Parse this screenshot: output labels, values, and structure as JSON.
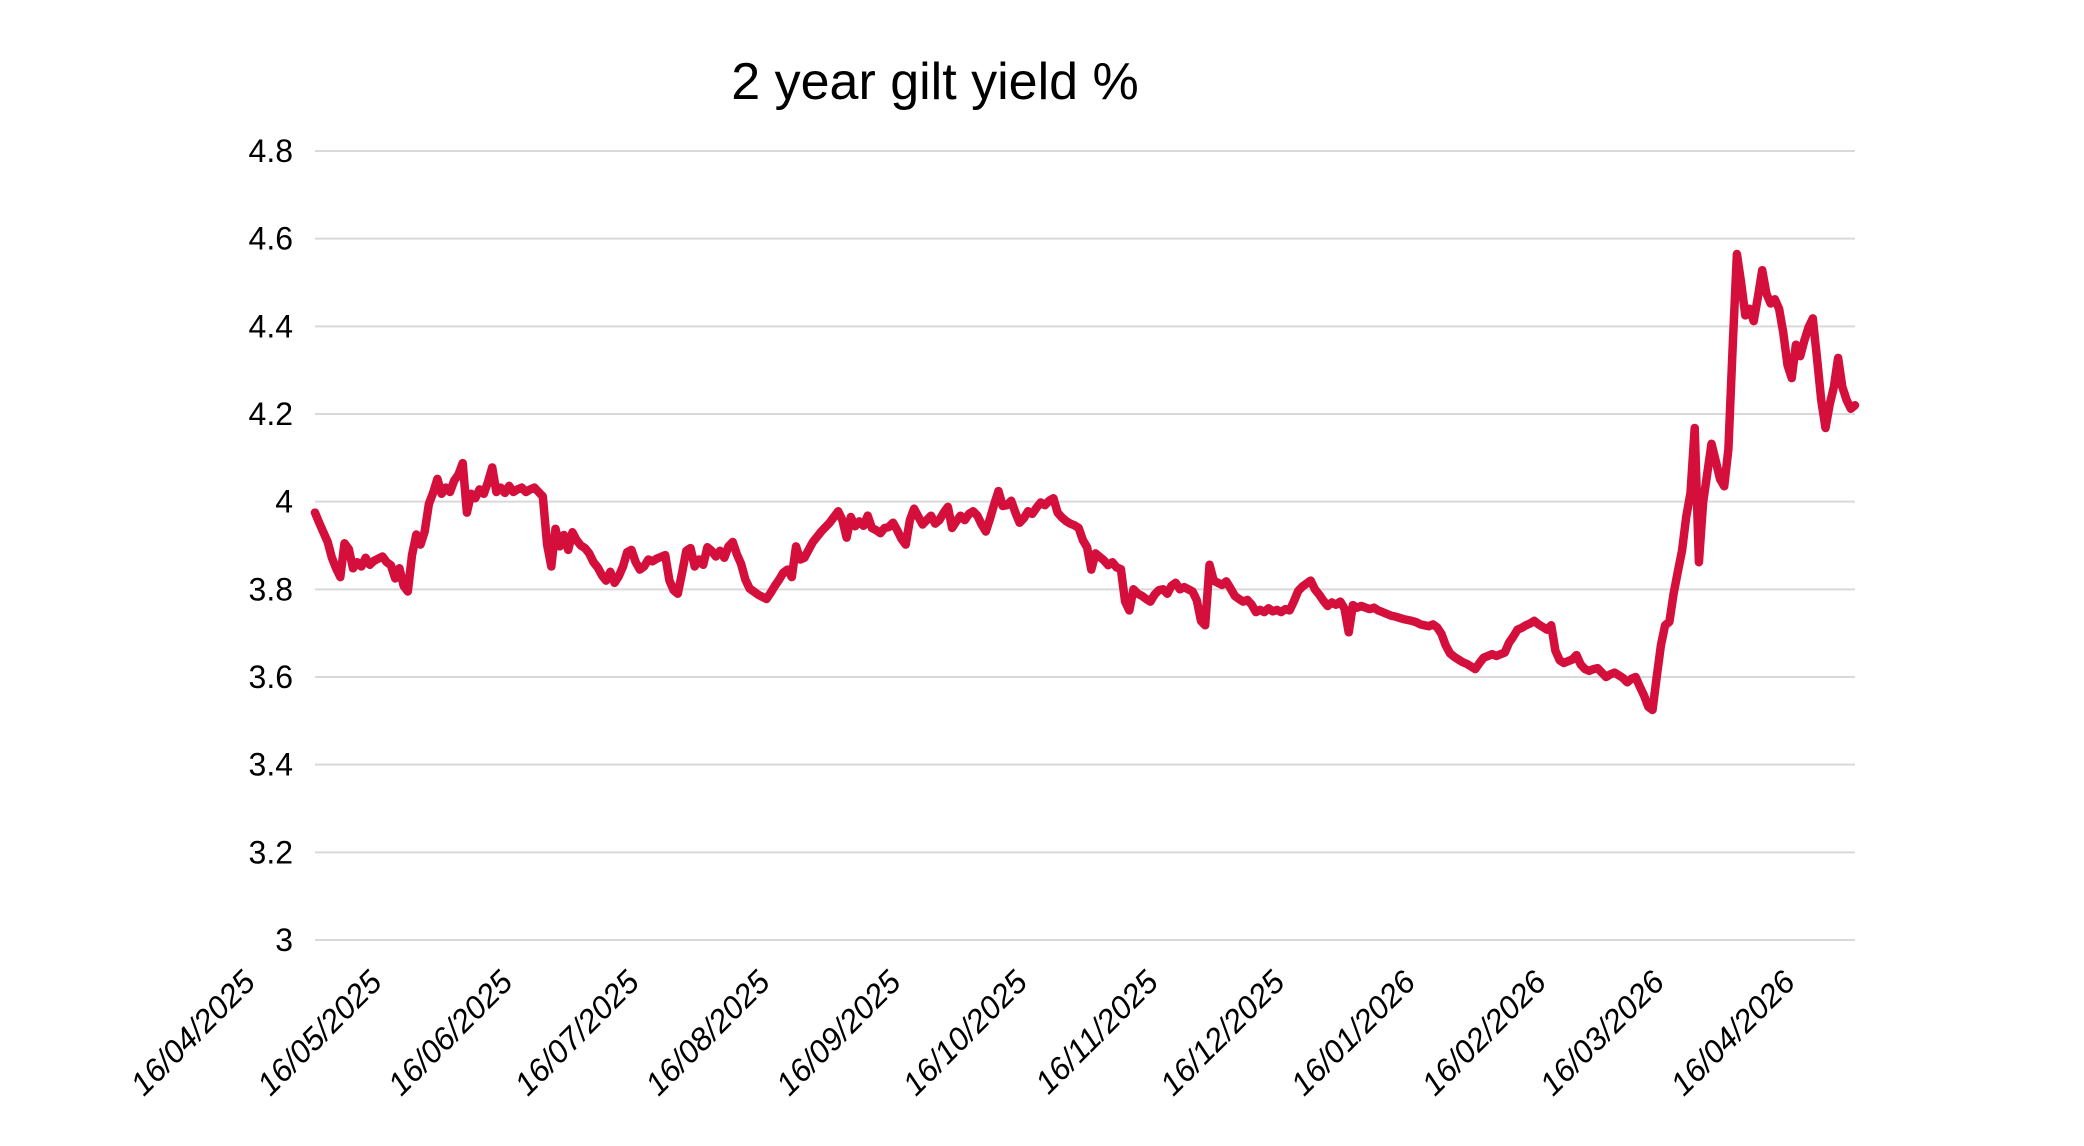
{
  "chart_data": {
    "type": "line",
    "title": "2 year gilt yield %",
    "series_name": "2 year gilt yield",
    "legend": "none",
    "grid": "horizontal",
    "background": "#ffffff",
    "line_color": "#d40f3c",
    "grid_color": "#d9d9d9",
    "text_color": "#000000",
    "y_min": 3.0,
    "y_max": 4.8,
    "y_tick_labels": [
      "3",
      "3.2",
      "3.4",
      "3.6",
      "3.8",
      "4",
      "4.2",
      "4.4",
      "4.6",
      "4.8"
    ],
    "x_tick_labels": [
      "16/04/2025",
      "16/05/2025",
      "16/06/2025",
      "16/07/2025",
      "16/08/2025",
      "16/09/2025",
      "16/10/2025",
      "16/11/2025",
      "16/12/2025",
      "16/01/2026",
      "16/02/2026",
      "16/03/2026",
      "16/04/2026"
    ],
    "x_tick_day_offsets": [
      0,
      30,
      61,
      91,
      122,
      153,
      183,
      214,
      244,
      275,
      306,
      334,
      365
    ],
    "x_unit": "days since 16/04/2025",
    "x_range_days": 365,
    "points": [
      [
        0,
        3.975
      ],
      [
        1,
        3.952
      ],
      [
        2,
        3.93
      ],
      [
        3,
        3.908
      ],
      [
        4,
        3.872
      ],
      [
        5,
        3.848
      ],
      [
        6,
        3.828
      ],
      [
        7,
        3.905
      ],
      [
        8,
        3.892
      ],
      [
        9,
        3.848
      ],
      [
        10,
        3.862
      ],
      [
        11,
        3.852
      ],
      [
        12,
        3.872
      ],
      [
        13,
        3.856
      ],
      [
        14,
        3.865
      ],
      [
        15,
        3.87
      ],
      [
        16,
        3.875
      ],
      [
        17,
        3.862
      ],
      [
        18,
        3.855
      ],
      [
        19,
        3.825
      ],
      [
        20,
        3.848
      ],
      [
        21,
        3.808
      ],
      [
        22,
        3.795
      ],
      [
        23,
        3.878
      ],
      [
        24,
        3.925
      ],
      [
        25,
        3.902
      ],
      [
        26,
        3.932
      ],
      [
        27,
        3.995
      ],
      [
        28,
        4.02
      ],
      [
        29,
        4.052
      ],
      [
        30,
        4.018
      ],
      [
        31,
        4.032
      ],
      [
        32,
        4.022
      ],
      [
        33,
        4.048
      ],
      [
        34,
        4.062
      ],
      [
        35,
        4.088
      ],
      [
        36,
        3.975
      ],
      [
        37,
        4.018
      ],
      [
        38,
        4.008
      ],
      [
        39,
        4.028
      ],
      [
        40,
        4.018
      ],
      [
        41,
        4.045
      ],
      [
        42,
        4.078
      ],
      [
        43,
        4.022
      ],
      [
        44,
        4.032
      ],
      [
        45,
        4.02
      ],
      [
        46,
        4.036
      ],
      [
        47,
        4.022
      ],
      [
        48,
        4.028
      ],
      [
        49,
        4.032
      ],
      [
        50,
        4.022
      ],
      [
        51,
        4.028
      ],
      [
        52,
        4.032
      ],
      [
        53,
        4.022
      ],
      [
        54,
        4.012
      ],
      [
        55,
        3.902
      ],
      [
        56,
        3.852
      ],
      [
        57,
        3.938
      ],
      [
        58,
        3.898
      ],
      [
        59,
        3.924
      ],
      [
        60,
        3.89
      ],
      [
        61,
        3.93
      ],
      [
        62,
        3.912
      ],
      [
        63,
        3.9
      ],
      [
        64,
        3.894
      ],
      [
        65,
        3.882
      ],
      [
        66,
        3.862
      ],
      [
        67,
        3.85
      ],
      [
        68,
        3.832
      ],
      [
        69,
        3.82
      ],
      [
        70,
        3.84
      ],
      [
        71,
        3.815
      ],
      [
        72,
        3.83
      ],
      [
        73,
        3.852
      ],
      [
        74,
        3.885
      ],
      [
        75,
        3.89
      ],
      [
        76,
        3.862
      ],
      [
        77,
        3.845
      ],
      [
        78,
        3.852
      ],
      [
        79,
        3.868
      ],
      [
        80,
        3.864
      ],
      [
        81,
        3.87
      ],
      [
        82,
        3.874
      ],
      [
        83,
        3.878
      ],
      [
        84,
        3.82
      ],
      [
        85,
        3.798
      ],
      [
        86,
        3.79
      ],
      [
        87,
        3.838
      ],
      [
        88,
        3.888
      ],
      [
        89,
        3.894
      ],
      [
        90,
        3.852
      ],
      [
        91,
        3.868
      ],
      [
        92,
        3.856
      ],
      [
        93,
        3.896
      ],
      [
        94,
        3.888
      ],
      [
        95,
        3.875
      ],
      [
        96,
        3.888
      ],
      [
        97,
        3.872
      ],
      [
        98,
        3.898
      ],
      [
        99,
        3.908
      ],
      [
        100,
        3.88
      ],
      [
        101,
        3.858
      ],
      [
        102,
        3.822
      ],
      [
        103,
        3.802
      ],
      [
        105,
        3.788
      ],
      [
        107,
        3.778
      ],
      [
        108,
        3.792
      ],
      [
        109,
        3.808
      ],
      [
        110,
        3.822
      ],
      [
        111,
        3.838
      ],
      [
        112,
        3.845
      ],
      [
        113,
        3.828
      ],
      [
        114,
        3.898
      ],
      [
        115,
        3.868
      ],
      [
        116,
        3.872
      ],
      [
        117,
        3.89
      ],
      [
        118,
        3.908
      ],
      [
        120,
        3.932
      ],
      [
        122,
        3.952
      ],
      [
        124,
        3.978
      ],
      [
        125,
        3.958
      ],
      [
        126,
        3.918
      ],
      [
        127,
        3.965
      ],
      [
        128,
        3.944
      ],
      [
        129,
        3.955
      ],
      [
        130,
        3.945
      ],
      [
        131,
        3.968
      ],
      [
        132,
        3.94
      ],
      [
        133,
        3.935
      ],
      [
        134,
        3.928
      ],
      [
        135,
        3.94
      ],
      [
        136,
        3.942
      ],
      [
        137,
        3.952
      ],
      [
        138,
        3.935
      ],
      [
        139,
        3.915
      ],
      [
        140,
        3.902
      ],
      [
        141,
        3.958
      ],
      [
        142,
        3.984
      ],
      [
        143,
        3.966
      ],
      [
        144,
        3.948
      ],
      [
        145,
        3.958
      ],
      [
        146,
        3.968
      ],
      [
        147,
        3.95
      ],
      [
        148,
        3.958
      ],
      [
        149,
        3.975
      ],
      [
        150,
        3.988
      ],
      [
        151,
        3.94
      ],
      [
        152,
        3.955
      ],
      [
        153,
        3.968
      ],
      [
        154,
        3.958
      ],
      [
        155,
        3.972
      ],
      [
        156,
        3.978
      ],
      [
        157,
        3.968
      ],
      [
        158,
        3.948
      ],
      [
        159,
        3.932
      ],
      [
        160,
        3.962
      ],
      [
        161,
        3.995
      ],
      [
        162,
        4.024
      ],
      [
        163,
        3.99
      ],
      [
        164,
        3.992
      ],
      [
        165,
        4.002
      ],
      [
        166,
        3.975
      ],
      [
        167,
        3.952
      ],
      [
        168,
        3.962
      ],
      [
        169,
        3.978
      ],
      [
        170,
        3.972
      ],
      [
        171,
        3.986
      ],
      [
        172,
        3.998
      ],
      [
        173,
        3.992
      ],
      [
        174,
        4.002
      ],
      [
        175,
        4.008
      ],
      [
        176,
        3.975
      ],
      [
        177,
        3.964
      ],
      [
        178,
        3.956
      ],
      [
        179,
        3.95
      ],
      [
        180,
        3.946
      ],
      [
        181,
        3.94
      ],
      [
        182,
        3.912
      ],
      [
        183,
        3.896
      ],
      [
        184,
        3.845
      ],
      [
        185,
        3.882
      ],
      [
        186,
        3.874
      ],
      [
        187,
        3.866
      ],
      [
        188,
        3.855
      ],
      [
        189,
        3.862
      ],
      [
        190,
        3.85
      ],
      [
        191,
        3.846
      ],
      [
        192,
        3.772
      ],
      [
        193,
        3.752
      ],
      [
        194,
        3.8
      ],
      [
        195,
        3.79
      ],
      [
        196,
        3.785
      ],
      [
        197,
        3.778
      ],
      [
        198,
        3.772
      ],
      [
        199,
        3.788
      ],
      [
        200,
        3.798
      ],
      [
        201,
        3.8
      ],
      [
        202,
        3.79
      ],
      [
        203,
        3.808
      ],
      [
        204,
        3.815
      ],
      [
        205,
        3.8
      ],
      [
        206,
        3.805
      ],
      [
        207,
        3.8
      ],
      [
        208,
        3.795
      ],
      [
        209,
        3.775
      ],
      [
        210,
        3.728
      ],
      [
        211,
        3.718
      ],
      [
        212,
        3.856
      ],
      [
        213,
        3.82
      ],
      [
        214,
        3.815
      ],
      [
        215,
        3.81
      ],
      [
        216,
        3.818
      ],
      [
        217,
        3.802
      ],
      [
        218,
        3.785
      ],
      [
        219,
        3.778
      ],
      [
        220,
        3.772
      ],
      [
        221,
        3.776
      ],
      [
        222,
        3.765
      ],
      [
        223,
        3.748
      ],
      [
        224,
        3.753
      ],
      [
        225,
        3.748
      ],
      [
        226,
        3.757
      ],
      [
        227,
        3.75
      ],
      [
        228,
        3.753
      ],
      [
        229,
        3.748
      ],
      [
        230,
        3.755
      ],
      [
        231,
        3.752
      ],
      [
        232,
        3.772
      ],
      [
        233,
        3.796
      ],
      [
        234,
        3.806
      ],
      [
        235,
        3.813
      ],
      [
        236,
        3.82
      ],
      [
        237,
        3.8
      ],
      [
        238,
        3.788
      ],
      [
        239,
        3.774
      ],
      [
        240,
        3.762
      ],
      [
        241,
        3.77
      ],
      [
        242,
        3.765
      ],
      [
        243,
        3.772
      ],
      [
        244,
        3.756
      ],
      [
        245,
        3.702
      ],
      [
        246,
        3.764
      ],
      [
        247,
        3.758
      ],
      [
        248,
        3.762
      ],
      [
        249,
        3.758
      ],
      [
        250,
        3.755
      ],
      [
        251,
        3.758
      ],
      [
        252,
        3.752
      ],
      [
        253,
        3.748
      ],
      [
        254,
        3.744
      ],
      [
        255,
        3.74
      ],
      [
        256,
        3.738
      ],
      [
        257,
        3.735
      ],
      [
        258,
        3.732
      ],
      [
        259,
        3.73
      ],
      [
        260,
        3.728
      ],
      [
        261,
        3.725
      ],
      [
        262,
        3.72
      ],
      [
        263,
        3.718
      ],
      [
        264,
        3.716
      ],
      [
        265,
        3.72
      ],
      [
        266,
        3.713
      ],
      [
        267,
        3.698
      ],
      [
        268,
        3.672
      ],
      [
        269,
        3.654
      ],
      [
        270,
        3.646
      ],
      [
        271,
        3.64
      ],
      [
        272,
        3.634
      ],
      [
        273,
        3.63
      ],
      [
        274,
        3.624
      ],
      [
        275,
        3.618
      ],
      [
        276,
        3.632
      ],
      [
        277,
        3.644
      ],
      [
        278,
        3.648
      ],
      [
        279,
        3.652
      ],
      [
        280,
        3.648
      ],
      [
        281,
        3.652
      ],
      [
        282,
        3.656
      ],
      [
        283,
        3.678
      ],
      [
        284,
        3.692
      ],
      [
        285,
        3.708
      ],
      [
        286,
        3.712
      ],
      [
        287,
        3.718
      ],
      [
        288,
        3.722
      ],
      [
        289,
        3.728
      ],
      [
        290,
        3.72
      ],
      [
        291,
        3.714
      ],
      [
        292,
        3.708
      ],
      [
        293,
        3.718
      ],
      [
        294,
        3.66
      ],
      [
        295,
        3.638
      ],
      [
        296,
        3.632
      ],
      [
        297,
        3.636
      ],
      [
        298,
        3.64
      ],
      [
        299,
        3.65
      ],
      [
        300,
        3.628
      ],
      [
        301,
        3.618
      ],
      [
        302,
        3.614
      ],
      [
        303,
        3.618
      ],
      [
        304,
        3.62
      ],
      [
        305,
        3.61
      ],
      [
        306,
        3.6
      ],
      [
        307,
        3.606
      ],
      [
        308,
        3.61
      ],
      [
        309,
        3.604
      ],
      [
        310,
        3.598
      ],
      [
        311,
        3.588
      ],
      [
        312,
        3.596
      ],
      [
        313,
        3.6
      ],
      [
        314,
        3.578
      ],
      [
        315,
        3.558
      ],
      [
        316,
        3.532
      ],
      [
        317,
        3.525
      ],
      [
        318,
        3.6
      ],
      [
        319,
        3.672
      ],
      [
        320,
        3.718
      ],
      [
        321,
        3.726
      ],
      [
        322,
        3.79
      ],
      [
        323,
        3.84
      ],
      [
        324,
        3.888
      ],
      [
        325,
        3.965
      ],
      [
        326,
        4.02
      ],
      [
        327,
        4.168
      ],
      [
        328,
        3.862
      ],
      [
        329,
        3.998
      ],
      [
        330,
        4.065
      ],
      [
        331,
        4.132
      ],
      [
        332,
        4.092
      ],
      [
        333,
        4.052
      ],
      [
        334,
        4.035
      ],
      [
        335,
        4.12
      ],
      [
        336,
        4.35
      ],
      [
        337,
        4.565
      ],
      [
        338,
        4.5
      ],
      [
        339,
        4.425
      ],
      [
        340,
        4.44
      ],
      [
        341,
        4.412
      ],
      [
        342,
        4.468
      ],
      [
        343,
        4.528
      ],
      [
        344,
        4.475
      ],
      [
        345,
        4.452
      ],
      [
        346,
        4.462
      ],
      [
        347,
        4.44
      ],
      [
        348,
        4.385
      ],
      [
        349,
        4.312
      ],
      [
        350,
        4.282
      ],
      [
        351,
        4.358
      ],
      [
        352,
        4.332
      ],
      [
        353,
        4.368
      ],
      [
        354,
        4.398
      ],
      [
        355,
        4.418
      ],
      [
        356,
        4.328
      ],
      [
        357,
        4.232
      ],
      [
        358,
        4.168
      ],
      [
        359,
        4.222
      ],
      [
        360,
        4.262
      ],
      [
        361,
        4.328
      ],
      [
        362,
        4.262
      ],
      [
        363,
        4.232
      ],
      [
        364,
        4.212
      ],
      [
        365,
        4.22
      ]
    ]
  }
}
